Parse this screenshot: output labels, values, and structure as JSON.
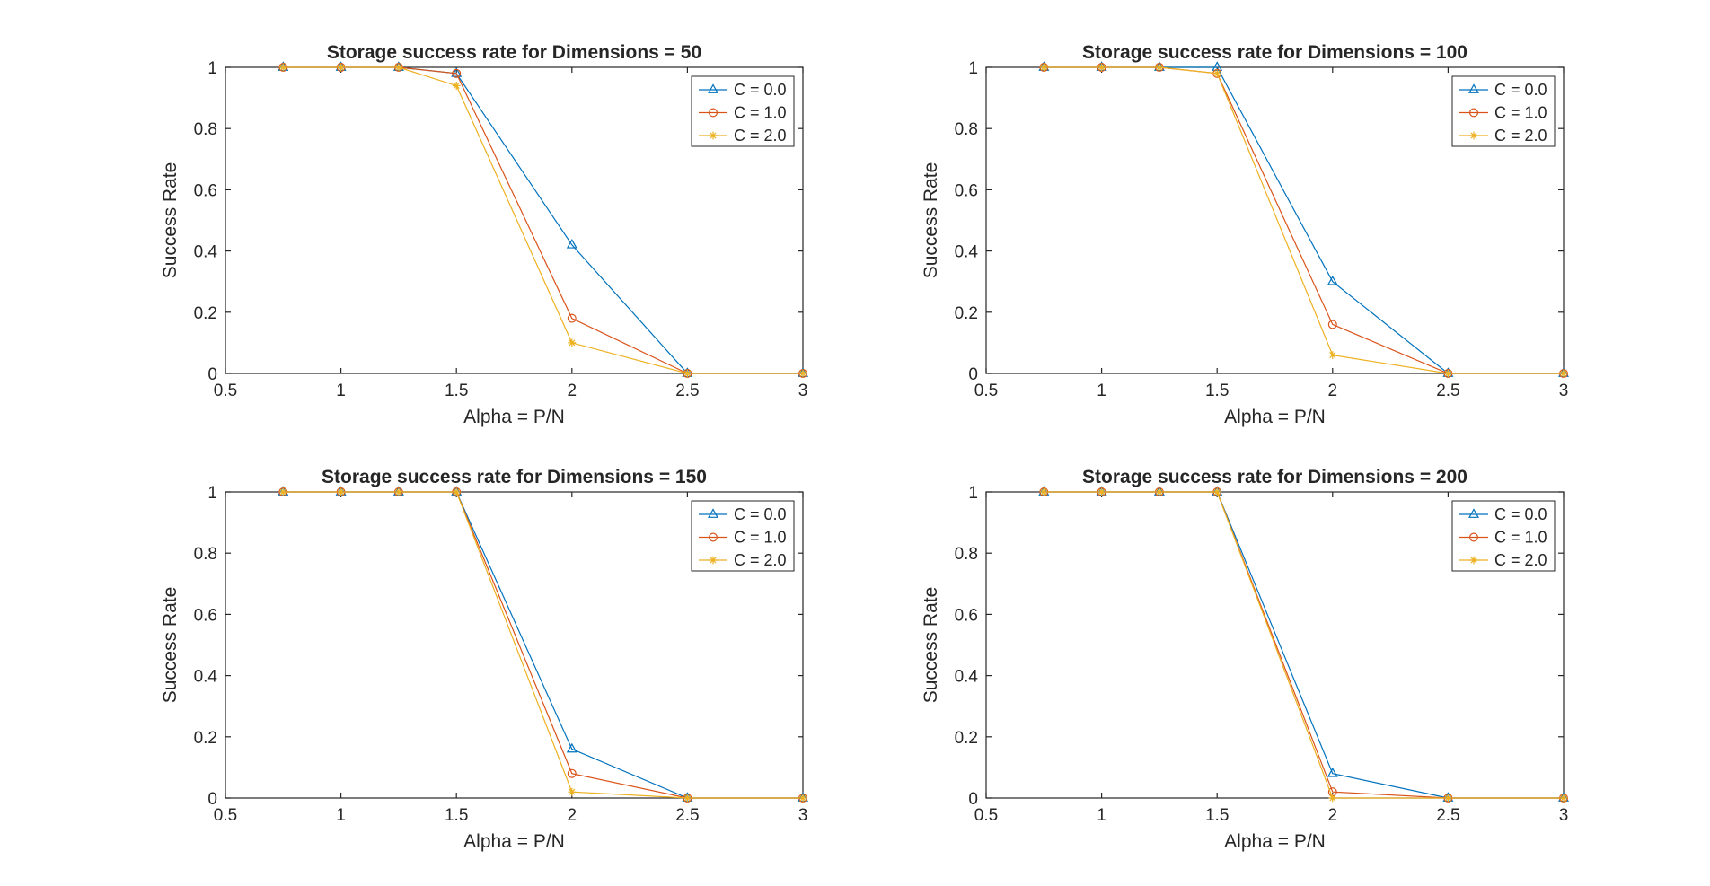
{
  "figure": {
    "background": "#ffffff"
  },
  "chart_data": [
    {
      "type": "line",
      "title": "Storage success rate for Dimensions = 50",
      "xlabel": "Alpha = P/N",
      "ylabel": "Success Rate",
      "xlim": [
        0.5,
        3
      ],
      "ylim": [
        0,
        1
      ],
      "xticks": [
        0.5,
        1,
        1.5,
        2,
        2.5,
        3
      ],
      "xtick_labels": [
        "0.5",
        "1",
        "1.5",
        "2",
        "2.5",
        "3"
      ],
      "yticks": [
        0,
        0.2,
        0.4,
        0.6,
        0.8,
        1
      ],
      "ytick_labels": [
        "0",
        "0.2",
        "0.4",
        "0.6",
        "0.8",
        "1"
      ],
      "grid": false,
      "legend_position": "top-right",
      "x": [
        0.75,
        1.0,
        1.25,
        1.5,
        2.0,
        2.5,
        3.0
      ],
      "series": [
        {
          "name": "C = 0.0",
          "color": "#0072bd",
          "marker": "triangle",
          "values": [
            1,
            1,
            1,
            0.98,
            0.42,
            0,
            0
          ]
        },
        {
          "name": "C = 1.0",
          "color": "#d95319",
          "marker": "circle",
          "values": [
            1,
            1,
            1,
            0.98,
            0.18,
            0,
            0
          ]
        },
        {
          "name": "C = 2.0",
          "color": "#edb120",
          "marker": "asterisk",
          "values": [
            1,
            1,
            1,
            0.94,
            0.1,
            0,
            0
          ]
        }
      ]
    },
    {
      "type": "line",
      "title": "Storage success rate for Dimensions = 100",
      "xlabel": "Alpha = P/N",
      "ylabel": "Success Rate",
      "xlim": [
        0.5,
        3
      ],
      "ylim": [
        0,
        1
      ],
      "xticks": [
        0.5,
        1,
        1.5,
        2,
        2.5,
        3
      ],
      "xtick_labels": [
        "0.5",
        "1",
        "1.5",
        "2",
        "2.5",
        "3"
      ],
      "yticks": [
        0,
        0.2,
        0.4,
        0.6,
        0.8,
        1
      ],
      "ytick_labels": [
        "0",
        "0.2",
        "0.4",
        "0.6",
        "0.8",
        "1"
      ],
      "grid": false,
      "legend_position": "top-right",
      "x": [
        0.75,
        1.0,
        1.25,
        1.5,
        2.0,
        2.5,
        3.0
      ],
      "series": [
        {
          "name": "C = 0.0",
          "color": "#0072bd",
          "marker": "triangle",
          "values": [
            1,
            1,
            1,
            1,
            0.3,
            0,
            0
          ]
        },
        {
          "name": "C = 1.0",
          "color": "#d95319",
          "marker": "circle",
          "values": [
            1,
            1,
            1,
            0.98,
            0.16,
            0,
            0
          ]
        },
        {
          "name": "C = 2.0",
          "color": "#edb120",
          "marker": "asterisk",
          "values": [
            1,
            1,
            1,
            0.98,
            0.06,
            0,
            0
          ]
        }
      ]
    },
    {
      "type": "line",
      "title": "Storage success rate for Dimensions = 150",
      "xlabel": "Alpha = P/N",
      "ylabel": "Success Rate",
      "xlim": [
        0.5,
        3
      ],
      "ylim": [
        0,
        1
      ],
      "xticks": [
        0.5,
        1,
        1.5,
        2,
        2.5,
        3
      ],
      "xtick_labels": [
        "0.5",
        "1",
        "1.5",
        "2",
        "2.5",
        "3"
      ],
      "yticks": [
        0,
        0.2,
        0.4,
        0.6,
        0.8,
        1
      ],
      "ytick_labels": [
        "0",
        "0.2",
        "0.4",
        "0.6",
        "0.8",
        "1"
      ],
      "grid": false,
      "legend_position": "top-right",
      "x": [
        0.75,
        1.0,
        1.25,
        1.5,
        2.0,
        2.5,
        3.0
      ],
      "series": [
        {
          "name": "C = 0.0",
          "color": "#0072bd",
          "marker": "triangle",
          "values": [
            1,
            1,
            1,
            1,
            0.16,
            0,
            0
          ]
        },
        {
          "name": "C = 1.0",
          "color": "#d95319",
          "marker": "circle",
          "values": [
            1,
            1,
            1,
            1,
            0.08,
            0,
            0
          ]
        },
        {
          "name": "C = 2.0",
          "color": "#edb120",
          "marker": "asterisk",
          "values": [
            1,
            1,
            1,
            1,
            0.02,
            0,
            0
          ]
        }
      ]
    },
    {
      "type": "line",
      "title": "Storage success rate for Dimensions = 200",
      "xlabel": "Alpha = P/N",
      "ylabel": "Success Rate",
      "xlim": [
        0.5,
        3
      ],
      "ylim": [
        0,
        1
      ],
      "xticks": [
        0.5,
        1,
        1.5,
        2,
        2.5,
        3
      ],
      "xtick_labels": [
        "0.5",
        "1",
        "1.5",
        "2",
        "2.5",
        "3"
      ],
      "yticks": [
        0,
        0.2,
        0.4,
        0.6,
        0.8,
        1
      ],
      "ytick_labels": [
        "0",
        "0.2",
        "0.4",
        "0.6",
        "0.8",
        "1"
      ],
      "grid": false,
      "legend_position": "top-right",
      "x": [
        0.75,
        1.0,
        1.25,
        1.5,
        2.0,
        2.5,
        3.0
      ],
      "series": [
        {
          "name": "C = 0.0",
          "color": "#0072bd",
          "marker": "triangle",
          "values": [
            1,
            1,
            1,
            1,
            0.08,
            0,
            0
          ]
        },
        {
          "name": "C = 1.0",
          "color": "#d95319",
          "marker": "circle",
          "values": [
            1,
            1,
            1,
            1,
            0.02,
            0,
            0
          ]
        },
        {
          "name": "C = 2.0",
          "color": "#edb120",
          "marker": "asterisk",
          "values": [
            1,
            1,
            1,
            1,
            0,
            0,
            0
          ]
        }
      ]
    }
  ]
}
